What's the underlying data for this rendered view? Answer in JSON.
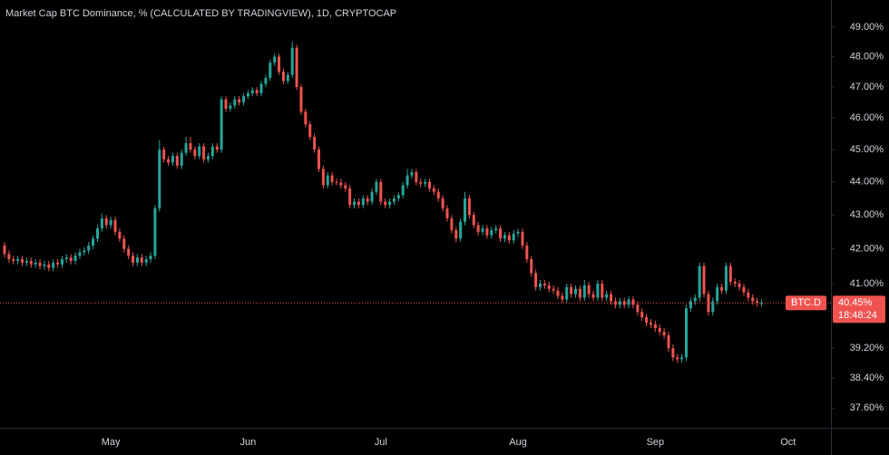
{
  "chart_data": {
    "type": "candlestick",
    "title": "Market Cap BTC Dominance, % (CALCULATED BY TRADINGVIEW), 1D, CRYPTOCAP",
    "log_scale": true,
    "grid": false,
    "up_color": "#26a69a",
    "down_color": "#ef5350",
    "ylim": [
      37.09,
      49.93
    ],
    "yticks": [
      {
        "value": 49,
        "label": "49.00%"
      },
      {
        "value": 48,
        "label": "48.00%"
      },
      {
        "value": 47,
        "label": "47.00%"
      },
      {
        "value": 46,
        "label": "46.00%"
      },
      {
        "value": 45,
        "label": "45.00%"
      },
      {
        "value": 44,
        "label": "44.00%"
      },
      {
        "value": 43,
        "label": "43.00%"
      },
      {
        "value": 42,
        "label": "42.00%"
      },
      {
        "value": 41,
        "label": "41.00%"
      },
      {
        "value": 39.2,
        "label": "39.20%"
      },
      {
        "value": 38.4,
        "label": "38.40%"
      },
      {
        "value": 37.6,
        "label": "37.60%"
      }
    ],
    "last_price": {
      "symbol": "BTC.D",
      "value": 40.45,
      "label": "40.45%",
      "countdown": "18:48:24"
    },
    "categories": [
      null,
      null,
      null,
      null,
      null,
      null,
      null,
      null,
      null,
      null,
      null,
      null,
      null,
      null,
      null,
      null,
      null,
      null,
      null,
      null,
      null,
      null,
      null,
      null,
      "May",
      null,
      null,
      null,
      null,
      null,
      null,
      null,
      null,
      null,
      null,
      null,
      null,
      null,
      null,
      null,
      null,
      null,
      null,
      null,
      null,
      null,
      null,
      null,
      null,
      null,
      null,
      null,
      null,
      null,
      null,
      "Jun",
      null,
      null,
      null,
      null,
      null,
      null,
      null,
      null,
      null,
      null,
      null,
      null,
      null,
      null,
      null,
      null,
      null,
      null,
      null,
      null,
      null,
      null,
      null,
      null,
      null,
      null,
      null,
      null,
      null,
      "Jul",
      null,
      null,
      null,
      null,
      null,
      null,
      null,
      null,
      null,
      null,
      null,
      null,
      null,
      null,
      null,
      null,
      null,
      null,
      null,
      null,
      null,
      null,
      null,
      null,
      null,
      null,
      null,
      null,
      null,
      null,
      "Aug",
      null,
      null,
      null,
      null,
      null,
      null,
      null,
      null,
      null,
      null,
      null,
      null,
      null,
      null,
      null,
      null,
      null,
      null,
      null,
      null,
      null,
      null,
      null,
      null,
      null,
      null,
      null,
      null,
      null,
      null,
      "Sep",
      null,
      null,
      null,
      null,
      null,
      null,
      null,
      null,
      null,
      null,
      null,
      null,
      null,
      null,
      null,
      null,
      null,
      null,
      null,
      null,
      null,
      null,
      null,
      null,
      null,
      null,
      null,
      null,
      null,
      "Oct"
    ],
    "open": [
      42.1,
      41.85,
      41.7,
      41.65,
      41.7,
      41.6,
      41.65,
      41.55,
      41.6,
      41.5,
      41.55,
      41.45,
      41.6,
      41.55,
      41.7,
      41.75,
      41.65,
      41.8,
      41.9,
      41.95,
      42.1,
      42.3,
      42.6,
      42.9,
      42.7,
      42.85,
      42.5,
      42.3,
      42.0,
      41.8,
      41.6,
      41.75,
      41.6,
      41.7,
      41.8,
      43.2,
      45.0,
      44.7,
      44.6,
      44.8,
      44.5,
      44.9,
      45.2,
      45.0,
      44.8,
      45.1,
      44.7,
      44.8,
      45.1,
      45.0,
      46.6,
      46.3,
      46.4,
      46.6,
      46.5,
      46.7,
      46.8,
      46.9,
      46.8,
      47.1,
      47.3,
      47.8,
      48.0,
      47.5,
      47.2,
      47.4,
      48.3,
      47.0,
      46.2,
      45.8,
      45.4,
      45.0,
      44.4,
      43.9,
      44.2,
      44.0,
      43.98,
      43.9,
      43.8,
      43.3,
      43.4,
      43.3,
      43.5,
      43.4,
      43.7,
      44.0,
      43.4,
      43.3,
      43.4,
      43.5,
      43.6,
      43.9,
      44.2,
      44.3,
      44.0,
      43.95,
      44.0,
      43.8,
      43.7,
      43.5,
      43.2,
      42.9,
      42.55,
      42.3,
      42.8,
      43.5,
      43.0,
      42.7,
      42.5,
      42.6,
      42.4,
      42.55,
      42.6,
      42.3,
      42.4,
      42.25,
      42.45,
      42.5,
      42.1,
      41.7,
      41.3,
      40.9,
      41.0,
      40.95,
      40.85,
      40.8,
      40.65,
      40.55,
      40.9,
      40.7,
      40.85,
      40.6,
      40.95,
      40.7,
      40.6,
      41.0,
      40.6,
      40.7,
      40.5,
      40.4,
      40.5,
      40.4,
      40.55,
      40.4,
      40.2,
      40.05,
      39.9,
      39.85,
      39.75,
      39.65,
      39.55,
      39.2,
      38.95,
      38.9,
      38.95,
      40.3,
      40.5,
      40.6,
      41.5,
      40.7,
      40.2,
      40.5,
      40.9,
      40.8,
      41.5,
      41.05,
      41.0,
      40.9,
      40.75,
      40.6,
      40.5,
      40.45,
      null,
      null,
      null,
      null,
      null,
      null
    ],
    "high": [
      42.2,
      41.95,
      41.8,
      41.8,
      41.8,
      41.75,
      41.75,
      41.7,
      41.7,
      41.65,
      41.65,
      41.7,
      41.7,
      41.8,
      41.85,
      41.85,
      41.9,
      42.0,
      42.05,
      42.2,
      42.4,
      42.7,
      43.05,
      43.0,
      42.95,
      42.95,
      42.6,
      42.4,
      42.1,
      41.9,
      41.85,
      41.85,
      41.8,
      41.9,
      43.3,
      45.3,
      45.1,
      44.8,
      44.9,
      44.9,
      45.0,
      45.4,
      45.4,
      45.1,
      45.2,
      45.2,
      44.9,
      45.2,
      45.2,
      46.7,
      46.7,
      46.5,
      46.7,
      46.7,
      46.8,
      46.9,
      47.0,
      47.0,
      47.2,
      47.4,
      47.9,
      48.1,
      48.1,
      47.6,
      47.5,
      48.5,
      48.4,
      47.1,
      46.3,
      45.9,
      45.5,
      45.1,
      44.5,
      44.3,
      44.3,
      44.1,
      44.1,
      44.0,
      43.9,
      43.5,
      43.5,
      43.6,
      43.6,
      43.8,
      44.1,
      44.1,
      43.5,
      43.5,
      43.6,
      43.7,
      44.0,
      44.4,
      44.4,
      44.4,
      44.1,
      44.1,
      44.1,
      43.9,
      43.8,
      43.6,
      43.3,
      43.0,
      42.65,
      42.9,
      43.7,
      43.6,
      43.1,
      42.8,
      42.7,
      42.7,
      42.65,
      42.7,
      42.7,
      42.5,
      42.5,
      42.55,
      42.6,
      42.6,
      42.2,
      41.8,
      41.4,
      41.1,
      41.1,
      41.05,
      40.95,
      40.9,
      40.75,
      41.0,
      41.0,
      40.95,
      40.95,
      41.1,
      41.05,
      40.8,
      41.1,
      41.1,
      40.8,
      40.8,
      40.6,
      40.6,
      40.6,
      40.65,
      40.65,
      40.5,
      40.3,
      40.15,
      40.0,
      39.95,
      39.85,
      39.75,
      39.65,
      39.3,
      39.05,
      39.05,
      40.4,
      40.6,
      40.7,
      41.6,
      41.6,
      40.8,
      40.6,
      41.0,
      41.0,
      41.6,
      41.6,
      41.15,
      41.1,
      41.0,
      40.85,
      40.7,
      40.6,
      40.55,
      null,
      null,
      null,
      null,
      null,
      null
    ],
    "low": [
      41.75,
      41.6,
      41.55,
      41.55,
      41.5,
      41.5,
      41.45,
      41.45,
      41.4,
      41.4,
      41.35,
      41.35,
      41.45,
      41.45,
      41.6,
      41.55,
      41.55,
      41.7,
      41.8,
      41.85,
      42.0,
      42.2,
      42.5,
      42.6,
      42.6,
      42.4,
      42.2,
      41.9,
      41.7,
      41.5,
      41.5,
      41.5,
      41.5,
      41.6,
      41.7,
      43.1,
      44.6,
      44.5,
      44.5,
      44.4,
      44.4,
      44.8,
      44.9,
      44.7,
      44.7,
      44.6,
      44.6,
      44.7,
      44.9,
      44.9,
      46.2,
      46.2,
      46.3,
      46.4,
      46.4,
      46.6,
      46.7,
      46.7,
      46.7,
      47.0,
      47.2,
      47.7,
      47.4,
      47.1,
      47.1,
      47.3,
      46.9,
      46.1,
      45.7,
      45.3,
      44.9,
      44.3,
      43.8,
      43.8,
      43.9,
      43.9,
      43.8,
      43.7,
      43.2,
      43.2,
      43.2,
      43.2,
      43.3,
      43.3,
      43.6,
      43.3,
      43.2,
      43.2,
      43.3,
      43.4,
      43.5,
      43.8,
      44.1,
      43.9,
      43.85,
      43.85,
      43.7,
      43.6,
      43.4,
      43.1,
      42.8,
      42.45,
      42.2,
      42.2,
      42.7,
      42.9,
      42.6,
      42.4,
      42.4,
      42.3,
      42.3,
      42.45,
      42.2,
      42.2,
      42.15,
      42.15,
      42.35,
      42.0,
      41.6,
      41.2,
      40.8,
      40.8,
      40.85,
      40.75,
      40.7,
      40.55,
      40.45,
      40.45,
      40.6,
      40.6,
      40.5,
      40.5,
      40.6,
      40.5,
      40.5,
      40.5,
      40.5,
      40.4,
      40.3,
      40.3,
      40.3,
      40.3,
      40.3,
      40.1,
      39.95,
      39.8,
      39.75,
      39.65,
      39.55,
      39.45,
      39.1,
      38.85,
      38.8,
      38.8,
      38.85,
      40.2,
      40.4,
      40.5,
      40.6,
      40.1,
      40.1,
      40.4,
      40.7,
      40.7,
      40.95,
      40.9,
      40.8,
      40.65,
      40.5,
      40.4,
      40.35,
      40.35,
      null,
      null,
      null,
      null,
      null,
      null
    ],
    "close": [
      41.85,
      41.7,
      41.65,
      41.7,
      41.6,
      41.65,
      41.55,
      41.6,
      41.5,
      41.55,
      41.45,
      41.6,
      41.55,
      41.7,
      41.75,
      41.65,
      41.8,
      41.9,
      41.95,
      42.1,
      42.3,
      42.6,
      42.9,
      42.7,
      42.85,
      42.5,
      42.3,
      42.0,
      41.8,
      41.6,
      41.75,
      41.6,
      41.7,
      41.8,
      43.2,
      45.0,
      44.7,
      44.6,
      44.8,
      44.5,
      44.9,
      45.2,
      45.0,
      44.8,
      45.1,
      44.7,
      44.8,
      45.1,
      45.0,
      46.6,
      46.3,
      46.4,
      46.6,
      46.5,
      46.7,
      46.8,
      46.9,
      46.8,
      47.1,
      47.3,
      47.8,
      48.0,
      47.5,
      47.2,
      47.4,
      48.3,
      47.0,
      46.2,
      45.8,
      45.4,
      45.0,
      44.4,
      43.9,
      44.2,
      44.0,
      43.98,
      43.9,
      43.8,
      43.3,
      43.4,
      43.3,
      43.5,
      43.4,
      43.7,
      44.0,
      43.4,
      43.3,
      43.4,
      43.5,
      43.6,
      43.9,
      44.2,
      44.3,
      44.0,
      43.95,
      44.0,
      43.8,
      43.7,
      43.5,
      43.2,
      42.9,
      42.55,
      42.3,
      42.8,
      43.5,
      43.0,
      42.7,
      42.5,
      42.6,
      42.4,
      42.55,
      42.6,
      42.3,
      42.4,
      42.25,
      42.45,
      42.5,
      42.1,
      41.7,
      41.3,
      40.9,
      41.0,
      40.95,
      40.85,
      40.8,
      40.65,
      40.55,
      40.9,
      40.7,
      40.85,
      40.6,
      40.95,
      40.7,
      40.6,
      41.0,
      40.6,
      40.7,
      40.5,
      40.4,
      40.5,
      40.4,
      40.55,
      40.4,
      40.2,
      40.05,
      39.9,
      39.85,
      39.75,
      39.65,
      39.55,
      39.2,
      38.95,
      38.9,
      38.95,
      40.3,
      40.5,
      40.6,
      41.5,
      40.7,
      40.2,
      40.5,
      40.9,
      40.8,
      41.5,
      41.05,
      41.0,
      40.9,
      40.75,
      40.6,
      40.5,
      40.45,
      40.45,
      null,
      null,
      null,
      null,
      null,
      null
    ]
  }
}
